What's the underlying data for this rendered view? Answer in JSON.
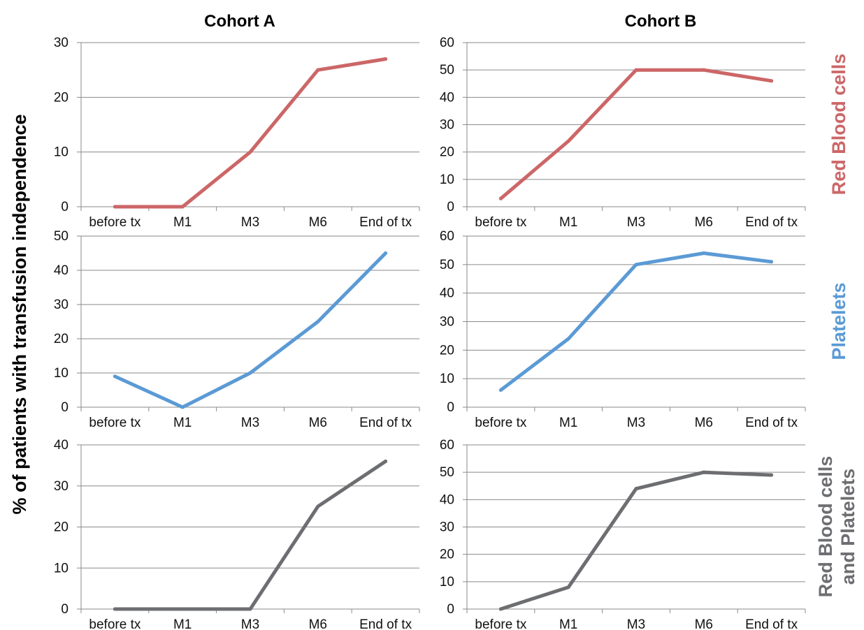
{
  "figure": {
    "ylabel": "% of patients with transfusion independence",
    "columns": [
      "Cohort A",
      "Cohort B"
    ],
    "rows": [
      {
        "lines": [
          "Red Blood cells"
        ],
        "color": "#cc6667"
      },
      {
        "lines": [
          "Platelets"
        ],
        "color": "#5b9ad5"
      },
      {
        "lines": [
          "Red Blood cells",
          "and Platelets"
        ],
        "color": "#6d6e71"
      }
    ]
  },
  "chart_data": [
    {
      "type": "line",
      "cohort": "Cohort A",
      "row": "Red Blood cells",
      "color": "#cc6667",
      "categories": [
        "before tx",
        "M1",
        "M3",
        "M6",
        "End of tx"
      ],
      "values": [
        0,
        0,
        10,
        25,
        27
      ],
      "ylim": [
        0,
        30
      ],
      "yticks": [
        0,
        10,
        20,
        30
      ],
      "grid": true
    },
    {
      "type": "line",
      "cohort": "Cohort B",
      "row": "Red Blood cells",
      "color": "#cc6667",
      "categories": [
        "before tx",
        "M1",
        "M3",
        "M6",
        "End of tx"
      ],
      "values": [
        3,
        24,
        50,
        50,
        46
      ],
      "ylim": [
        0,
        60
      ],
      "yticks": [
        0,
        10,
        20,
        30,
        40,
        50,
        60
      ],
      "grid": true
    },
    {
      "type": "line",
      "cohort": "Cohort A",
      "row": "Platelets",
      "color": "#5b9ad5",
      "categories": [
        "before tx",
        "M1",
        "M3",
        "M6",
        "End of tx"
      ],
      "values": [
        9,
        0,
        10,
        25,
        45
      ],
      "ylim": [
        0,
        50
      ],
      "yticks": [
        0,
        10,
        20,
        30,
        40,
        50
      ],
      "grid": true
    },
    {
      "type": "line",
      "cohort": "Cohort B",
      "row": "Platelets",
      "color": "#5b9ad5",
      "categories": [
        "before tx",
        "M1",
        "M3",
        "M6",
        "End of tx"
      ],
      "values": [
        6,
        24,
        50,
        54,
        51
      ],
      "ylim": [
        0,
        60
      ],
      "yticks": [
        0,
        10,
        20,
        30,
        40,
        50,
        60
      ],
      "grid": true
    },
    {
      "type": "line",
      "cohort": "Cohort A",
      "row": "Red Blood cells and Platelets",
      "color": "#6d6e71",
      "categories": [
        "before tx",
        "M1",
        "M3",
        "M6",
        "End of tx"
      ],
      "values": [
        0,
        0,
        0,
        25,
        36
      ],
      "ylim": [
        0,
        40
      ],
      "yticks": [
        0,
        10,
        20,
        30,
        40
      ],
      "grid": true
    },
    {
      "type": "line",
      "cohort": "Cohort B",
      "row": "Red Blood cells and Platelets",
      "color": "#6d6e71",
      "categories": [
        "before tx",
        "M1",
        "M3",
        "M6",
        "End of tx"
      ],
      "values": [
        0,
        8,
        44,
        50,
        49
      ],
      "ylim": [
        0,
        60
      ],
      "yticks": [
        0,
        10,
        20,
        30,
        40,
        50,
        60
      ],
      "grid": true
    }
  ]
}
